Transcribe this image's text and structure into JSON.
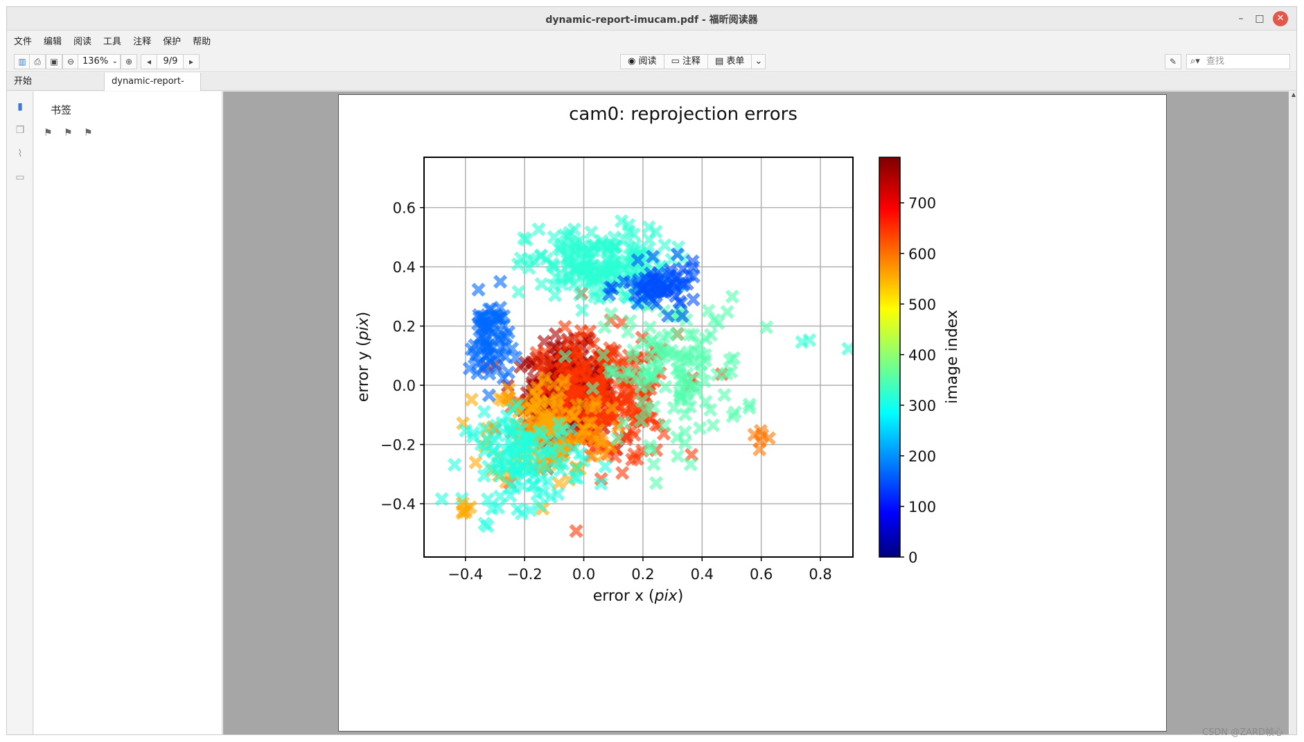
{
  "window": {
    "title": "dynamic-report-imucam.pdf - 福昕阅读器",
    "controls": {
      "minimize": "–",
      "maximize": "□",
      "close": "✕"
    }
  },
  "menu": [
    "文件",
    "编辑",
    "阅读",
    "工具",
    "注释",
    "保护",
    "帮助"
  ],
  "toolbar": {
    "zoom": "136%",
    "page": "9/9",
    "modes": {
      "read": "阅读",
      "annotate": "注释",
      "form": "表单"
    },
    "search_placeholder": "查找"
  },
  "tabs": [
    {
      "label": "开始"
    },
    {
      "label": "dynamic-report-im…"
    }
  ],
  "sidebar": {
    "header": "书签"
  },
  "watermark": "CSDN @ZARD帧心",
  "chart_data": {
    "type": "scatter",
    "title": "cam0: reprojection errors",
    "xlabel_main": "error x (",
    "xlabel_unit": "pix",
    "xlabel_close": ")",
    "ylabel_main": "error y (",
    "ylabel_unit": "pix",
    "ylabel_close": ")",
    "xlim": [
      -0.54,
      0.91
    ],
    "ylim": [
      -0.58,
      0.77
    ],
    "xticks": [
      -0.4,
      -0.2,
      0.0,
      0.2,
      0.4,
      0.6,
      0.8
    ],
    "xtick_labels": [
      "−0.4",
      "−0.2",
      "0.0",
      "0.2",
      "0.4",
      "0.6",
      "0.8"
    ],
    "yticks": [
      -0.4,
      -0.2,
      0.0,
      0.2,
      0.4,
      0.6
    ],
    "ytick_labels": [
      "−0.4",
      "−0.2",
      "0.0",
      "0.2",
      "0.4",
      "0.6"
    ],
    "grid": true,
    "marker": "x",
    "colorbar": {
      "label": "image index",
      "colormap": "jet",
      "range": [
        0,
        790
      ],
      "ticks": [
        0,
        100,
        200,
        300,
        400,
        500,
        600,
        700
      ],
      "tick_labels": [
        "0",
        "100",
        "200",
        "300",
        "400",
        "500",
        "600",
        "700"
      ]
    },
    "series": [
      {
        "color_value": 760,
        "center": [
          -0.05,
          -0.02
        ],
        "spread": [
          0.13,
          0.14
        ],
        "count": 330
      },
      {
        "color_value": 650,
        "center": [
          0.05,
          -0.05
        ],
        "spread": [
          0.24,
          0.2
        ],
        "count": 250
      },
      {
        "color_value": 560,
        "center": [
          -0.12,
          -0.15
        ],
        "spread": [
          0.18,
          0.17
        ],
        "count": 150
      },
      {
        "color_value": 330,
        "center": [
          0.05,
          0.4
        ],
        "spread": [
          0.22,
          0.12
        ],
        "count": 190
      },
      {
        "color_value": 360,
        "center": [
          0.3,
          0.05
        ],
        "spread": [
          0.22,
          0.22
        ],
        "count": 130
      },
      {
        "color_value": 320,
        "center": [
          -0.2,
          -0.25
        ],
        "spread": [
          0.18,
          0.14
        ],
        "count": 120
      },
      {
        "color_value": 180,
        "center": [
          -0.32,
          0.15
        ],
        "spread": [
          0.06,
          0.14
        ],
        "count": 70
      },
      {
        "color_value": 160,
        "center": [
          0.26,
          0.33
        ],
        "spread": [
          0.12,
          0.07
        ],
        "count": 70
      },
      {
        "color_value": 560,
        "center": [
          -0.4,
          -0.42
        ],
        "spread": [
          0.03,
          0.03
        ],
        "count": 6
      },
      {
        "color_value": 600,
        "center": [
          0.6,
          -0.17
        ],
        "spread": [
          0.03,
          0.04
        ],
        "count": 6
      },
      {
        "color_value": 330,
        "center": [
          0.78,
          0.13
        ],
        "spread": [
          0.07,
          0.03
        ],
        "count": 3
      }
    ]
  }
}
